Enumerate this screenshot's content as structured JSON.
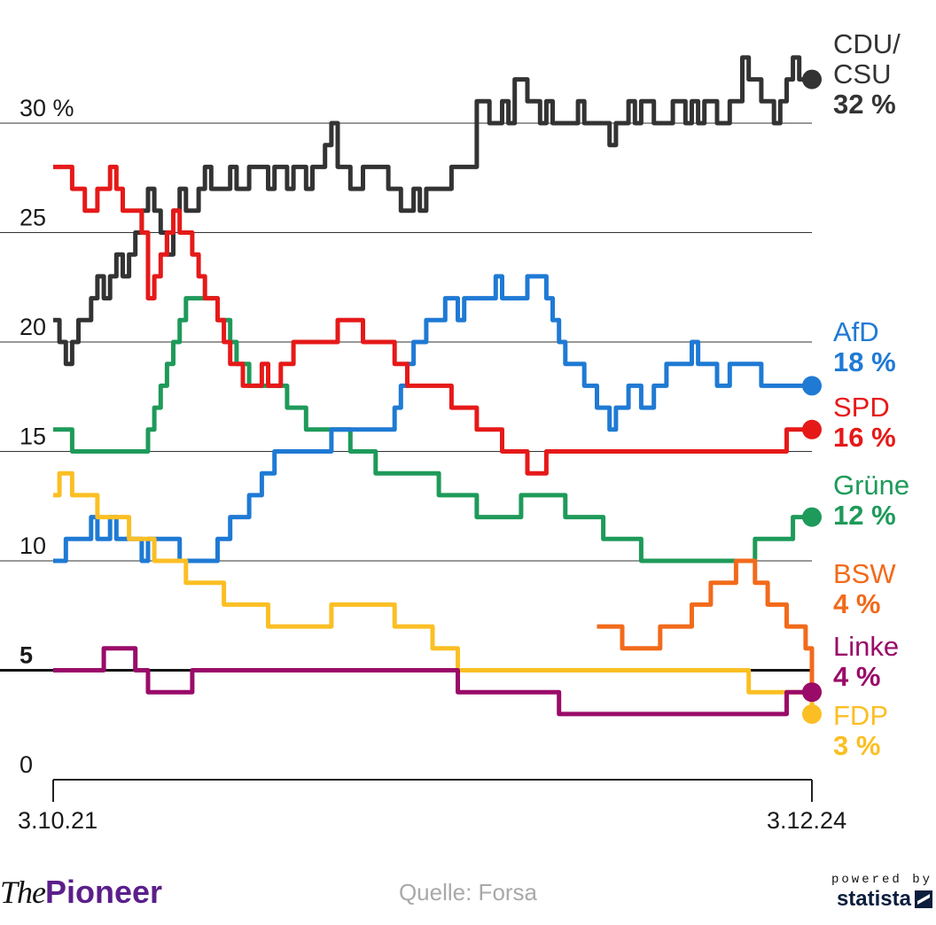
{
  "chart_data": {
    "type": "line",
    "title": "",
    "source": "Quelle: Forsa",
    "x_start_label": "3.10.21",
    "x_end_label": "3.12.24",
    "ylim": [
      0,
      33
    ],
    "y_ticks": [
      {
        "value": 0,
        "label": "0",
        "emphasis": false
      },
      {
        "value": 5,
        "label": "5",
        "emphasis": true
      },
      {
        "value": 10,
        "label": "10",
        "emphasis": false
      },
      {
        "value": 15,
        "label": "15",
        "emphasis": false
      },
      {
        "value": 20,
        "label": "20",
        "emphasis": false
      },
      {
        "value": 25,
        "label": "25",
        "emphasis": false
      },
      {
        "value": 30,
        "label": "30 %",
        "emphasis": false
      }
    ],
    "series": [
      {
        "key": "cdu",
        "name": "CDU/\nCSU",
        "value_label": "32 %",
        "color": "#333333",
        "end_value": 32,
        "start_index": 0,
        "values": [
          21,
          20,
          19,
          20,
          21,
          21,
          22,
          23,
          22,
          23,
          24,
          23,
          24,
          25,
          26,
          27,
          26,
          25,
          24,
          26,
          27,
          26,
          26,
          27,
          28,
          27,
          27,
          27,
          28,
          27,
          27,
          28,
          28,
          28,
          27,
          28,
          28,
          27,
          28,
          28,
          27,
          28,
          28,
          29,
          30,
          28,
          28,
          27,
          27,
          28,
          28,
          28,
          28,
          27,
          27,
          26,
          26,
          27,
          26,
          27,
          27,
          27,
          27,
          28,
          28,
          28,
          28,
          31,
          31,
          30,
          30,
          31,
          30,
          32,
          32,
          31,
          31,
          30,
          31,
          30,
          30,
          30,
          30,
          31,
          30,
          30,
          30,
          30,
          29,
          30,
          30,
          31,
          30,
          31,
          31,
          30,
          30,
          30,
          31,
          31,
          30,
          31,
          30,
          31,
          31,
          30,
          30,
          31,
          31,
          33,
          32,
          32,
          31,
          31,
          30,
          31,
          32,
          33,
          32,
          32,
          32
        ]
      },
      {
        "key": "afd",
        "name": "AfD",
        "value_label": "18 %",
        "color": "#1f7ad4",
        "end_value": 18,
        "start_index": 0,
        "values": [
          10,
          10,
          11,
          11,
          11,
          11,
          12,
          11,
          11,
          12,
          11,
          11,
          11,
          11,
          10,
          11,
          11,
          11,
          11,
          11,
          10,
          10,
          10,
          10,
          10,
          10,
          11,
          11,
          12,
          12,
          12,
          13,
          13,
          14,
          14,
          15,
          15,
          15,
          15,
          15,
          15,
          15,
          15,
          15,
          16,
          16,
          16,
          16,
          16,
          16,
          16,
          16,
          16,
          16,
          17,
          18,
          19,
          20,
          20,
          21,
          21,
          21,
          22,
          22,
          21,
          22,
          22,
          22,
          22,
          22,
          23,
          22,
          22,
          22,
          22,
          23,
          23,
          23,
          22,
          21,
          20,
          19,
          19,
          19,
          18,
          18,
          17,
          17,
          16,
          17,
          17,
          18,
          18,
          17,
          17,
          18,
          18,
          19,
          19,
          19,
          19,
          20,
          19,
          19,
          19,
          18,
          18,
          19,
          19,
          19,
          19,
          19,
          18,
          18,
          18,
          18,
          18,
          18,
          18,
          18,
          18
        ]
      },
      {
        "key": "spd",
        "name": "SPD",
        "value_label": "16 %",
        "color": "#e61919",
        "end_value": 16,
        "start_index": 0,
        "values": [
          28,
          28,
          28,
          27,
          27,
          26,
          26,
          27,
          27,
          28,
          27,
          26,
          26,
          26,
          25,
          22,
          23,
          24,
          25,
          26,
          25,
          25,
          24,
          23,
          22,
          22,
          21,
          20,
          19,
          19,
          18,
          18,
          18,
          19,
          18,
          18,
          19,
          19,
          20,
          20,
          20,
          20,
          20,
          20,
          20,
          21,
          21,
          21,
          21,
          20,
          20,
          20,
          20,
          20,
          19,
          19,
          18,
          18,
          18,
          18,
          18,
          18,
          18,
          17,
          17,
          17,
          17,
          16,
          16,
          16,
          16,
          15,
          15,
          15,
          15,
          14,
          14,
          14,
          15,
          15,
          15,
          15,
          15,
          15,
          15,
          15,
          15,
          15,
          15,
          15,
          15,
          15,
          15,
          15,
          15,
          15,
          15,
          15,
          15,
          15,
          15,
          15,
          15,
          15,
          15,
          15,
          15,
          15,
          15,
          15,
          15,
          15,
          15,
          15,
          15,
          15,
          16,
          16,
          16,
          16,
          16
        ]
      },
      {
        "key": "gruene",
        "name": "Grüne",
        "value_label": "12 %",
        "color": "#1e9a5a",
        "end_value": 12,
        "start_index": 0,
        "values": [
          16,
          16,
          16,
          15,
          15,
          15,
          15,
          15,
          15,
          15,
          15,
          15,
          15,
          15,
          15,
          16,
          17,
          18,
          19,
          20,
          21,
          22,
          22,
          22,
          22,
          22,
          21,
          21,
          20,
          19,
          19,
          18,
          18,
          18,
          18,
          18,
          18,
          17,
          17,
          17,
          16,
          16,
          16,
          16,
          16,
          16,
          16,
          15,
          15,
          15,
          15,
          14,
          14,
          14,
          14,
          14,
          14,
          14,
          14,
          14,
          14,
          13,
          13,
          13,
          13,
          13,
          13,
          12,
          12,
          12,
          12,
          12,
          12,
          12,
          13,
          13,
          13,
          13,
          13,
          13,
          13,
          12,
          12,
          12,
          12,
          12,
          12,
          11,
          11,
          11,
          11,
          11,
          11,
          10,
          10,
          10,
          10,
          10,
          10,
          10,
          10,
          10,
          10,
          10,
          10,
          10,
          10,
          10,
          10,
          10,
          10,
          11,
          11,
          11,
          11,
          11,
          11,
          12,
          12,
          12,
          12
        ]
      },
      {
        "key": "bsw",
        "name": "BSW",
        "value_label": "4 %",
        "color": "#f26a1b",
        "end_value": 4,
        "start_index": 86,
        "values": [
          7,
          7,
          7,
          7,
          6,
          6,
          6,
          6,
          6,
          6,
          7,
          7,
          7,
          7,
          7,
          8,
          8,
          8,
          9,
          9,
          9,
          9,
          10,
          10,
          10,
          9,
          9,
          8,
          8,
          8,
          7,
          7,
          7,
          6,
          4
        ]
      },
      {
        "key": "linke",
        "name": "Linke",
        "value_label": "4 %",
        "color": "#9a0b69",
        "end_value": 4,
        "start_index": 0,
        "values": [
          5,
          5,
          5,
          5,
          5,
          5,
          5,
          5,
          6,
          6,
          6,
          6,
          6,
          5,
          5,
          4,
          4,
          4,
          4,
          4,
          4,
          4,
          5,
          5,
          5,
          5,
          5,
          5,
          5,
          5,
          5,
          5,
          5,
          5,
          5,
          5,
          5,
          5,
          5,
          5,
          5,
          5,
          5,
          5,
          5,
          5,
          5,
          5,
          5,
          5,
          5,
          5,
          5,
          5,
          5,
          5,
          5,
          5,
          5,
          5,
          5,
          5,
          5,
          5,
          4,
          4,
          4,
          4,
          4,
          4,
          4,
          4,
          4,
          4,
          4,
          4,
          4,
          4,
          4,
          4,
          3,
          3,
          3,
          3,
          3,
          3,
          3,
          3,
          3,
          3,
          3,
          3,
          3,
          3,
          3,
          3,
          3,
          3,
          3,
          3,
          3,
          3,
          3,
          3,
          3,
          3,
          3,
          3,
          3,
          3,
          3,
          3,
          3,
          3,
          3,
          3,
          4,
          4,
          4,
          4,
          4
        ]
      },
      {
        "key": "fdp",
        "name": "FDP",
        "value_label": "3 %",
        "color": "#fbbf24",
        "end_value": 3,
        "start_index": 0,
        "values": [
          13,
          14,
          14,
          13,
          13,
          13,
          13,
          12,
          12,
          12,
          12,
          12,
          11,
          11,
          11,
          11,
          10,
          10,
          10,
          10,
          10,
          9,
          9,
          9,
          9,
          9,
          9,
          8,
          8,
          8,
          8,
          8,
          8,
          8,
          7,
          7,
          7,
          7,
          7,
          7,
          7,
          7,
          7,
          7,
          8,
          8,
          8,
          8,
          8,
          8,
          8,
          8,
          8,
          8,
          7,
          7,
          7,
          7,
          7,
          7,
          6,
          6,
          6,
          6,
          5,
          5,
          5,
          5,
          5,
          5,
          5,
          5,
          5,
          5,
          5,
          5,
          5,
          5,
          5,
          5,
          5,
          5,
          5,
          5,
          5,
          5,
          5,
          5,
          5,
          5,
          5,
          5,
          5,
          5,
          5,
          5,
          5,
          5,
          5,
          5,
          5,
          5,
          5,
          5,
          5,
          5,
          5,
          5,
          5,
          5,
          4,
          4,
          4,
          4,
          4,
          4,
          4,
          4,
          4,
          4,
          3
        ]
      }
    ]
  },
  "brand": {
    "the": "The",
    "pioneer": "Pioneer"
  },
  "statista": {
    "powered_by": "powered by",
    "name": "statista"
  }
}
